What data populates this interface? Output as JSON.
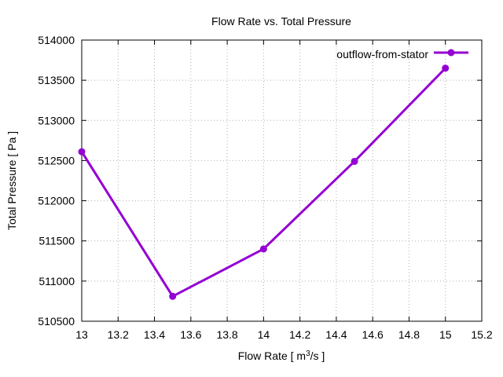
{
  "chart_data": {
    "type": "line",
    "title": "Flow Rate vs. Total Pressure",
    "xlabel_main": "Flow Rate [ m",
    "xlabel_sup": "3",
    "xlabel_tail": "/s ]",
    "ylabel": "Total Pressure [ Pa ]",
    "xlim": [
      13,
      15.2
    ],
    "ylim": [
      510500,
      514000
    ],
    "x_ticks": [
      13,
      13.2,
      13.4,
      13.6,
      13.8,
      14,
      14.2,
      14.4,
      14.6,
      14.8,
      15,
      15.2
    ],
    "x_tick_labels": [
      "13",
      "13.2",
      "13.4",
      "13.6",
      "13.8",
      "14",
      "14.2",
      "14.4",
      "14.6",
      "14.8",
      "15",
      "15.2"
    ],
    "y_ticks": [
      510500,
      511000,
      511500,
      512000,
      512500,
      513000,
      513500,
      514000
    ],
    "y_tick_labels": [
      "510500",
      "511000",
      "511500",
      "512000",
      "512500",
      "513000",
      "513500",
      "514000"
    ],
    "grid": true,
    "legend_position": "top-right",
    "series": [
      {
        "name": "outflow-from-stator",
        "color": "#9400d3",
        "x": [
          13,
          13.5,
          14,
          14.5,
          15
        ],
        "y": [
          512610,
          510810,
          511400,
          512490,
          513650
        ]
      }
    ]
  }
}
